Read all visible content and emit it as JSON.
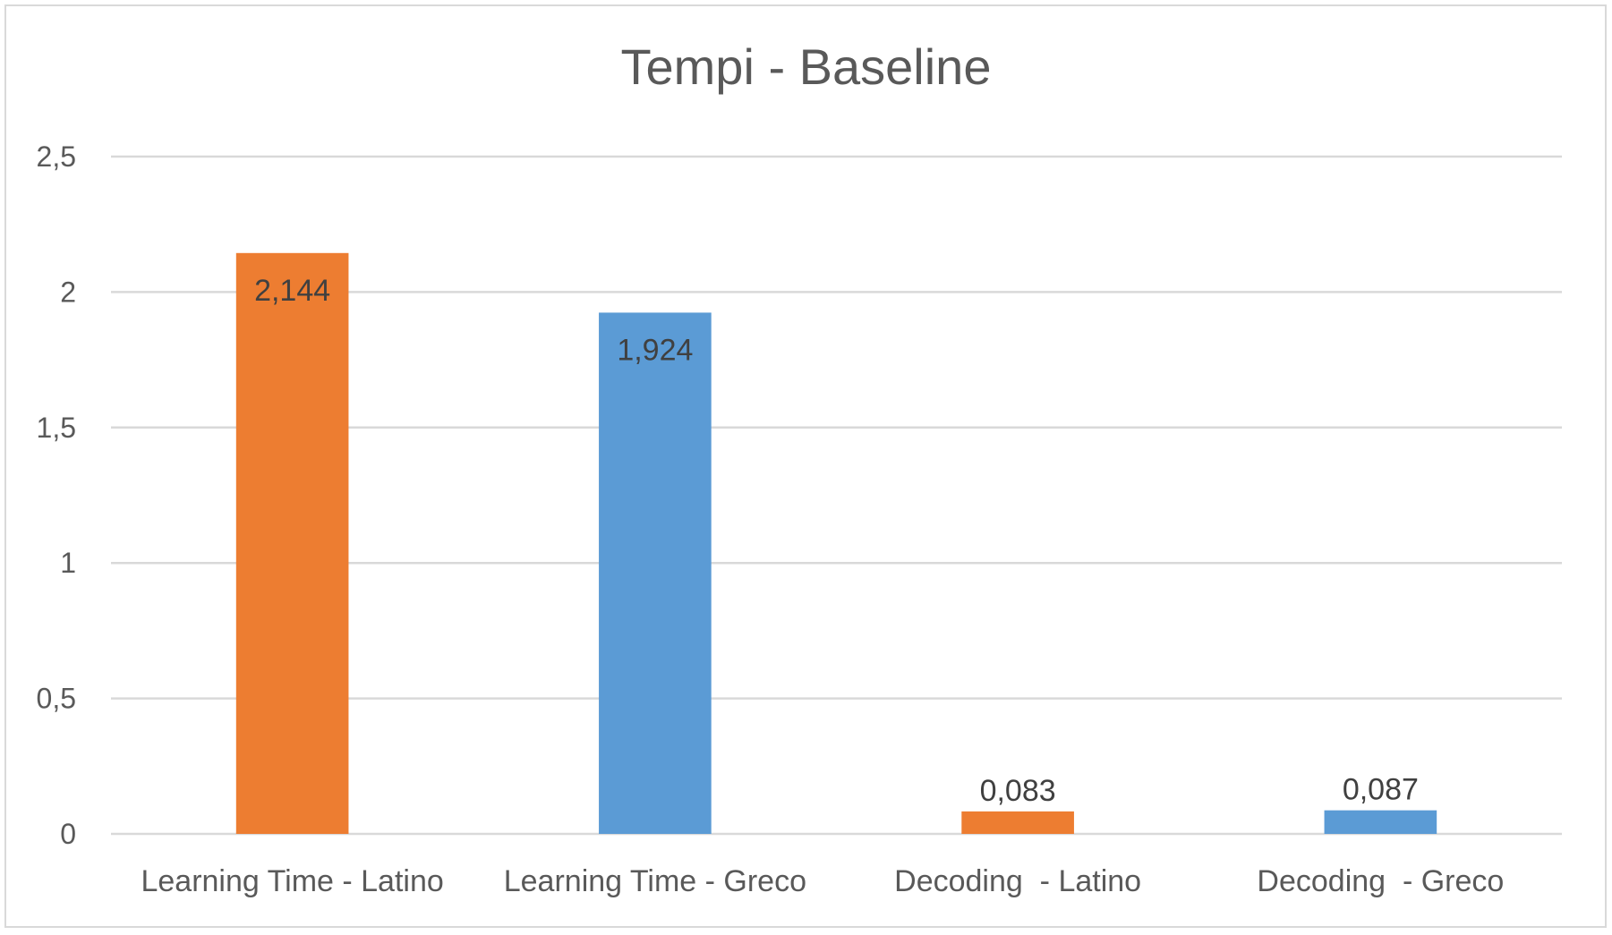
{
  "chart_data": {
    "type": "bar",
    "title": "Tempi - Baseline",
    "xlabel": "",
    "ylabel": "",
    "categories": [
      "Learning Time - Latino",
      "Learning Time - Greco",
      "Decoding  - Latino",
      "Decoding  - Greco"
    ],
    "values": [
      2.144,
      1.924,
      0.083,
      0.087
    ],
    "data_labels": [
      "2,144",
      "1,924",
      "0,083",
      "0,087"
    ],
    "bar_colors": [
      "#ED7D31",
      "#5B9BD5",
      "#ED7D31",
      "#5B9BD5"
    ],
    "ylim": [
      0,
      2.5
    ],
    "y_ticks": [
      0,
      0.5,
      1,
      1.5,
      2,
      2.5
    ],
    "y_tick_labels": [
      "0",
      "0,5",
      "1",
      "1,5",
      "2",
      "2,5"
    ],
    "grid": true,
    "legend": "none"
  }
}
